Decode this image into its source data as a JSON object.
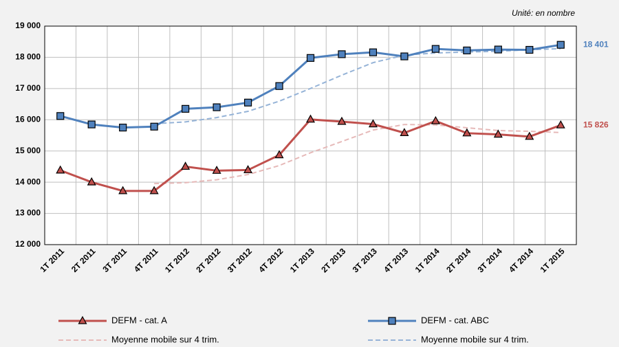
{
  "chart_data": {
    "type": "line",
    "note": "Unité: en nombre",
    "categories": [
      "1T 2011",
      "2T 2011",
      "3T 2011",
      "4T 2011",
      "1T 2012",
      "2T 2012",
      "3T 2012",
      "4T 2012",
      "1T 2013",
      "2T 2013",
      "3T 2013",
      "4T 2013",
      "1T 2014",
      "2T 2014",
      "3T 2014",
      "4T 2014",
      "1T 2015"
    ],
    "ylim": [
      12000,
      19000
    ],
    "yticks": [
      {
        "value": 12000,
        "label": "12 000"
      },
      {
        "value": 13000,
        "label": "13 000"
      },
      {
        "value": 14000,
        "label": "14 000"
      },
      {
        "value": 15000,
        "label": "15 000"
      },
      {
        "value": 16000,
        "label": "16 000"
      },
      {
        "value": 17000,
        "label": "17 000"
      },
      {
        "value": 18000,
        "label": "18 000"
      },
      {
        "value": 19000,
        "label": "19 000"
      }
    ],
    "grid": true,
    "series": [
      {
        "name": "DEFM - cat. A",
        "color": "#c0504d",
        "marker": "triangle",
        "dashed": false,
        "values": [
          14380,
          14000,
          13720,
          13720,
          14500,
          14370,
          14390,
          14870,
          16010,
          15940,
          15860,
          15580,
          15960,
          15570,
          15530,
          15460,
          15826
        ],
        "value_labels": [
          null,
          null,
          null,
          null,
          null,
          null,
          null,
          null,
          null,
          null,
          null,
          null,
          null,
          null,
          null,
          null,
          "15 826"
        ]
      },
      {
        "name": "DEFM - cat. ABC",
        "color": "#4f81bd",
        "marker": "square",
        "dashed": false,
        "values": [
          16120,
          15850,
          15750,
          15780,
          16350,
          16400,
          16550,
          17080,
          17980,
          18100,
          18160,
          18030,
          18270,
          18220,
          18250,
          18240,
          18401
        ],
        "value_labels": [
          null,
          null,
          null,
          null,
          null,
          null,
          null,
          null,
          null,
          null,
          null,
          null,
          null,
          null,
          null,
          null,
          "18 401"
        ]
      },
      {
        "name": "Moyenne mobile sur  4 trim.",
        "color": "#e6b9b8",
        "marker": "none",
        "dashed": true,
        "values": [
          null,
          null,
          null,
          13955,
          13985,
          14078,
          14245,
          14533,
          14943,
          15303,
          15670,
          15848,
          15835,
          15743,
          15655,
          15630,
          15591
        ]
      },
      {
        "name": "Moyenne mobile sur  4 trim.",
        "color": "#95b3d7",
        "marker": "none",
        "dashed": true,
        "values": [
          null,
          null,
          null,
          15875,
          15932,
          16070,
          16270,
          16595,
          17003,
          17428,
          17830,
          18068,
          18140,
          18170,
          18193,
          18245,
          18278
        ]
      }
    ]
  }
}
